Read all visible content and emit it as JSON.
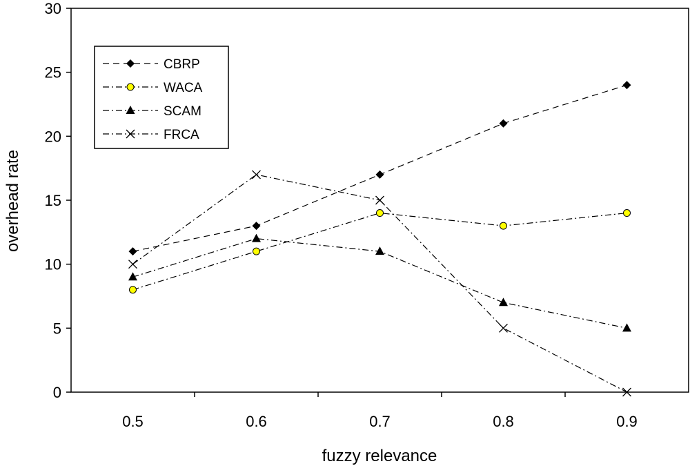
{
  "chart_data": {
    "type": "line",
    "title": "",
    "xlabel": "fuzzy relevance",
    "ylabel": "overhead rate",
    "x": [
      0.5,
      0.6,
      0.7,
      0.8,
      0.9
    ],
    "xticks": [
      "0.5",
      "0.6",
      "0.7",
      "0.8",
      "0.9"
    ],
    "xlim": [
      0.45,
      0.95
    ],
    "ylim": [
      0,
      30
    ],
    "yticks": [
      "0",
      "5",
      "10",
      "15",
      "20",
      "25",
      "30"
    ],
    "grid": false,
    "legend_position": "top-left",
    "series": [
      {
        "name": "CBRP",
        "marker": "diamond",
        "dash": "dashed",
        "values": [
          11,
          13,
          17,
          21,
          24
        ]
      },
      {
        "name": "WACA",
        "marker": "circle",
        "dash": "dash-dot",
        "color": "#ffff00",
        "values": [
          8,
          11,
          14,
          13,
          14
        ]
      },
      {
        "name": "SCAM",
        "marker": "triangle",
        "dash": "dash-dot",
        "values": [
          9,
          12,
          11,
          7,
          5
        ]
      },
      {
        "name": "FRCA",
        "marker": "x",
        "dash": "dash-dot",
        "values": [
          10,
          17,
          15,
          5,
          0
        ]
      }
    ]
  }
}
